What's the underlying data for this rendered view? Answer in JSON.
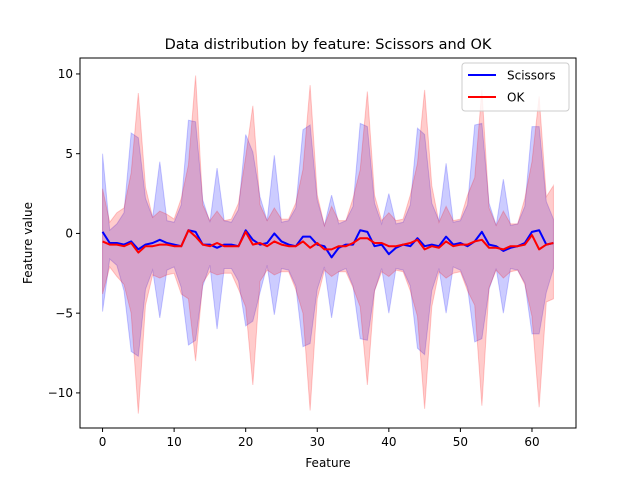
{
  "chart_data": {
    "type": "line",
    "title": "Data distribution by feature: Scissors and OK",
    "xlabel": "Feature",
    "ylabel": "Feature value",
    "xlim": [
      -3.15,
      66.15
    ],
    "ylim": [
      -12.2,
      11.0
    ],
    "xticks": [
      0,
      10,
      20,
      30,
      40,
      50,
      60
    ],
    "yticks": [
      -10,
      -5,
      0,
      5,
      10
    ],
    "grid": false,
    "legend_position": "top-right",
    "series": [
      {
        "name": "Scissors",
        "color": "#0000ff",
        "band_color": "#0000ff",
        "band_alpha": 0.2,
        "mean": [
          0.1,
          -0.6,
          -0.6,
          -0.7,
          -0.5,
          -1.0,
          -0.7,
          -0.6,
          -0.4,
          -0.6,
          -0.7,
          -0.8,
          0.2,
          0.1,
          -0.7,
          -0.7,
          -0.9,
          -0.7,
          -0.7,
          -0.8,
          0.2,
          -0.4,
          -0.7,
          -0.6,
          0.0,
          -0.5,
          -0.7,
          -0.8,
          -0.2,
          -0.2,
          -0.7,
          -0.8,
          -1.5,
          -0.9,
          -0.7,
          -0.7,
          0.2,
          0.1,
          -0.8,
          -0.7,
          -1.3,
          -0.9,
          -0.7,
          -0.8,
          -0.3,
          -0.8,
          -0.7,
          -0.8,
          -0.2,
          -0.7,
          -0.6,
          -0.8,
          -0.5,
          0.1,
          -0.7,
          -0.8,
          -1.1,
          -0.9,
          -0.8,
          -0.6,
          0.1,
          0.2,
          -0.7,
          -0.6
        ],
        "lower": [
          -4.9,
          -1.6,
          -2.0,
          -3.6,
          -7.4,
          -7.7,
          -3.5,
          -2.3,
          -5.3,
          -2.3,
          -2.1,
          -3.4,
          -7.0,
          -6.7,
          -3.3,
          -2.0,
          -6.0,
          -2.2,
          -2.2,
          -3.0,
          -5.8,
          -5.5,
          -3.7,
          -2.0,
          -5.1,
          -2.2,
          -2.3,
          -3.3,
          -7.1,
          -6.9,
          -3.5,
          -2.1,
          -5.3,
          -2.4,
          -2.2,
          -3.3,
          -6.6,
          -6.7,
          -3.6,
          -2.2,
          -5.0,
          -2.2,
          -2.3,
          -3.3,
          -7.2,
          -7.6,
          -3.6,
          -2.2,
          -5.0,
          -2.1,
          -2.3,
          -3.4,
          -6.8,
          -6.6,
          -3.5,
          -2.2,
          -5.0,
          -2.2,
          -2.3,
          -3.1,
          -6.3,
          -6.3,
          -3.7,
          -2.2
        ],
        "upper": [
          5.0,
          0.2,
          0.6,
          1.3,
          6.3,
          6.0,
          2.2,
          1.0,
          4.5,
          0.8,
          0.7,
          1.8,
          7.1,
          7.0,
          2.1,
          0.7,
          4.1,
          0.8,
          0.7,
          1.5,
          6.2,
          5.1,
          2.3,
          0.8,
          4.9,
          0.7,
          0.8,
          1.6,
          6.5,
          6.8,
          2.1,
          0.5,
          2.4,
          0.6,
          0.8,
          1.7,
          6.9,
          6.7,
          1.9,
          0.6,
          2.5,
          0.6,
          0.7,
          1.8,
          6.6,
          6.2,
          1.9,
          0.8,
          4.4,
          0.7,
          0.8,
          1.8,
          6.8,
          6.9,
          1.9,
          0.5,
          3.4,
          0.5,
          0.6,
          1.7,
          6.7,
          6.7,
          2.0,
          0.9
        ]
      },
      {
        "name": "OK",
        "color": "#ff0000",
        "band_color": "#ff0000",
        "band_alpha": 0.2,
        "mean": [
          -0.5,
          -0.7,
          -0.7,
          -0.8,
          -0.6,
          -1.2,
          -0.8,
          -0.8,
          -0.7,
          -0.7,
          -0.8,
          -0.8,
          0.2,
          -0.2,
          -0.7,
          -0.8,
          -0.6,
          -0.8,
          -0.8,
          -0.8,
          0.1,
          -0.7,
          -0.6,
          -0.8,
          -0.5,
          -0.7,
          -0.8,
          -0.8,
          -0.5,
          -0.9,
          -0.6,
          -1.0,
          -1.0,
          -0.8,
          -0.8,
          -0.6,
          -0.3,
          -0.3,
          -0.6,
          -0.6,
          -0.8,
          -0.8,
          -0.7,
          -0.6,
          -0.4,
          -1.0,
          -0.8,
          -0.9,
          -0.5,
          -0.8,
          -0.7,
          -0.7,
          -0.5,
          -0.4,
          -0.9,
          -0.9,
          -1.0,
          -0.8,
          -0.8,
          -0.7,
          -0.1,
          -1.0,
          -0.7,
          -0.6
        ],
        "lower": [
          -3.8,
          -2.1,
          -2.7,
          -3.2,
          -5.0,
          -11.3,
          -4.5,
          -2.6,
          -2.8,
          -2.6,
          -2.5,
          -3.8,
          -4.1,
          -8.0,
          -3.1,
          -2.4,
          -2.6,
          -2.5,
          -2.5,
          -3.5,
          -4.6,
          -9.5,
          -3.0,
          -2.3,
          -2.6,
          -2.4,
          -2.4,
          -3.5,
          -5.0,
          -11.1,
          -4.1,
          -2.3,
          -2.7,
          -2.4,
          -2.4,
          -3.4,
          -4.6,
          -9.5,
          -3.6,
          -2.4,
          -2.7,
          -2.3,
          -2.4,
          -3.6,
          -5.2,
          -11.0,
          -4.6,
          -2.4,
          -2.8,
          -2.5,
          -2.4,
          -3.6,
          -4.5,
          -10.8,
          -3.4,
          -2.3,
          -2.8,
          -2.4,
          -2.3,
          -3.2,
          -5.2,
          -10.9,
          -4.3,
          -4.1
        ],
        "upper": [
          2.8,
          0.7,
          1.3,
          1.6,
          3.8,
          8.8,
          2.9,
          1.0,
          1.4,
          1.2,
          0.9,
          2.2,
          4.3,
          9.9,
          1.8,
          0.8,
          1.4,
          0.8,
          0.9,
          1.9,
          4.8,
          8.0,
          1.8,
          0.8,
          1.6,
          0.9,
          0.9,
          1.9,
          4.0,
          9.3,
          2.4,
          0.5,
          1.7,
          0.8,
          0.8,
          2.2,
          4.0,
          8.9,
          2.4,
          0.8,
          1.3,
          0.8,
          0.9,
          2.4,
          4.4,
          9.0,
          3.0,
          0.7,
          1.7,
          0.8,
          0.9,
          2.4,
          3.5,
          9.0,
          1.6,
          0.5,
          1.4,
          0.6,
          0.6,
          2.2,
          4.5,
          8.6,
          2.3,
          3.0
        ]
      }
    ]
  }
}
